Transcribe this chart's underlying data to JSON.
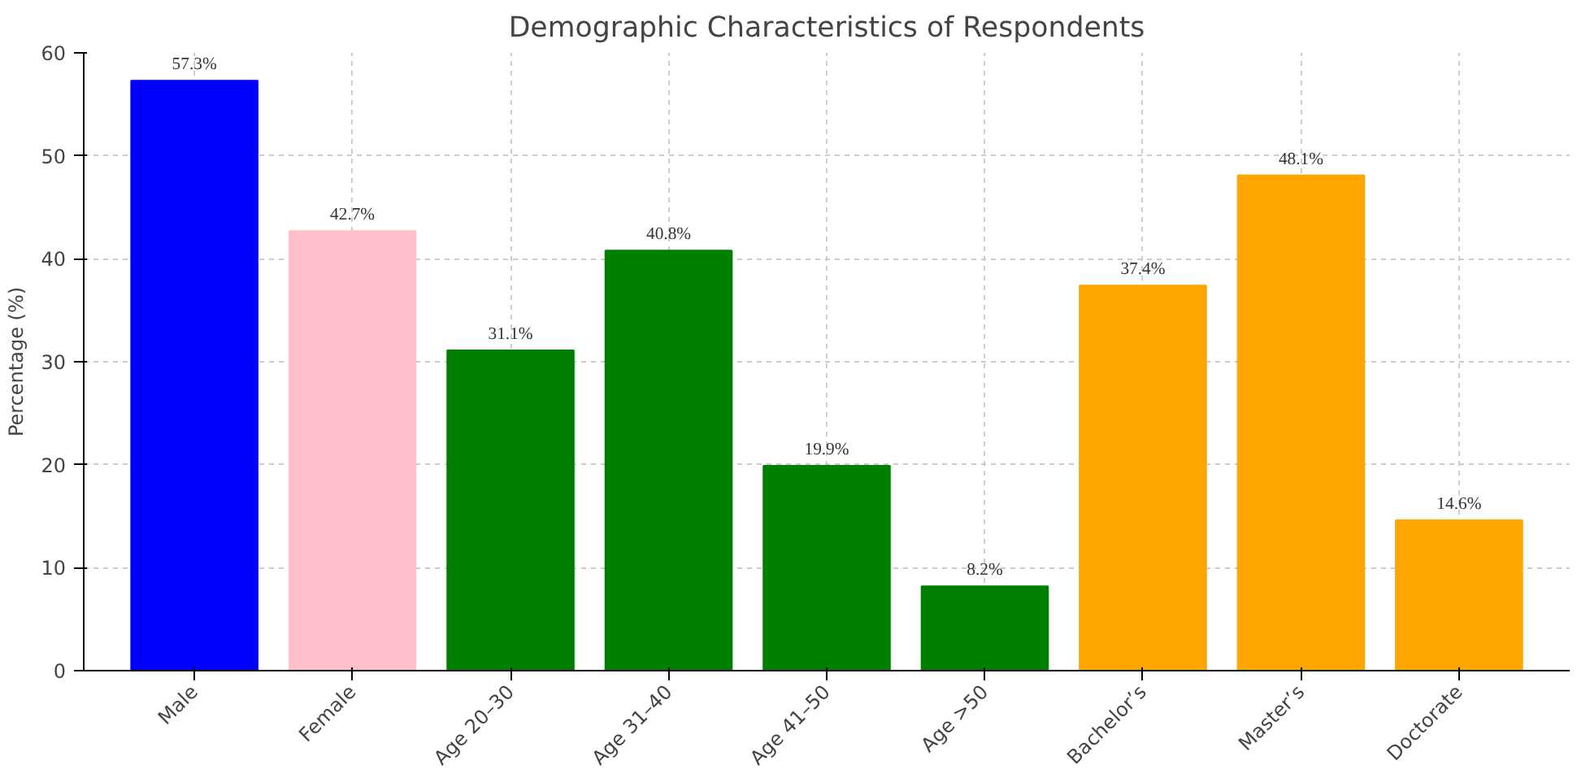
{
  "chart_data": {
    "type": "bar",
    "title": "Demographic Characteristics of Respondents",
    "ylabel": "Percentage (%)",
    "categories": [
      "Male",
      "Female",
      "Age 20–30",
      "Age 31–40",
      "Age 41–50",
      "Age >50",
      "Bachelor’s",
      "Master’s",
      "Doctorate"
    ],
    "values": [
      57.3,
      42.7,
      31.1,
      40.8,
      19.9,
      8.2,
      37.4,
      48.1,
      14.6
    ],
    "colors": [
      "#0000ff",
      "#ffc0cb",
      "#008000",
      "#008000",
      "#008000",
      "#008000",
      "#ffa500",
      "#ffa500",
      "#ffa500"
    ],
    "value_labels": [
      "57.3%",
      "42.7%",
      "31.1%",
      "40.8%",
      "19.9%",
      "8.2%",
      "37.4%",
      "48.1%",
      "14.6%"
    ],
    "ylim": [
      0,
      60
    ],
    "yticks": [
      0,
      10,
      20,
      30,
      40,
      50,
      60
    ],
    "grid": true
  }
}
